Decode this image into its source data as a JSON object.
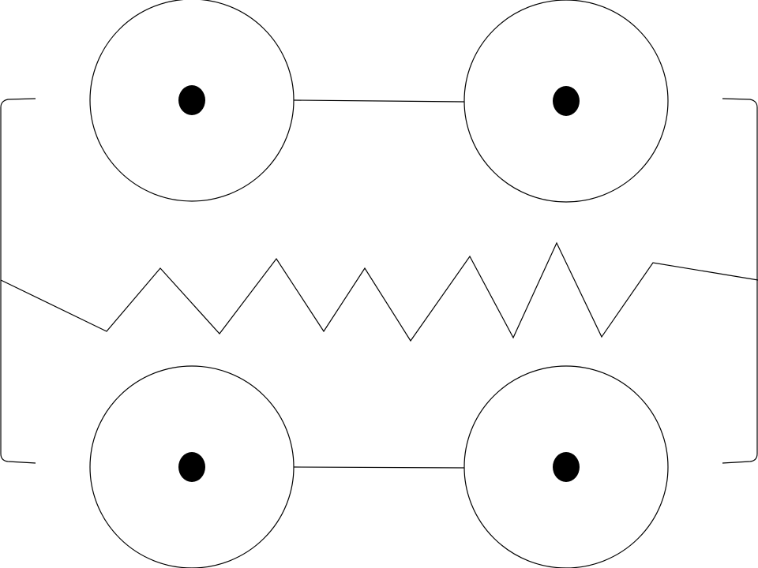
{
  "diagram": {
    "colors": {
      "background": "#ffffff",
      "stroke": "#000000",
      "fill": "#000000"
    },
    "elements": {
      "wheels": 4,
      "axles": 2,
      "brackets": 2,
      "springs": 1
    }
  }
}
